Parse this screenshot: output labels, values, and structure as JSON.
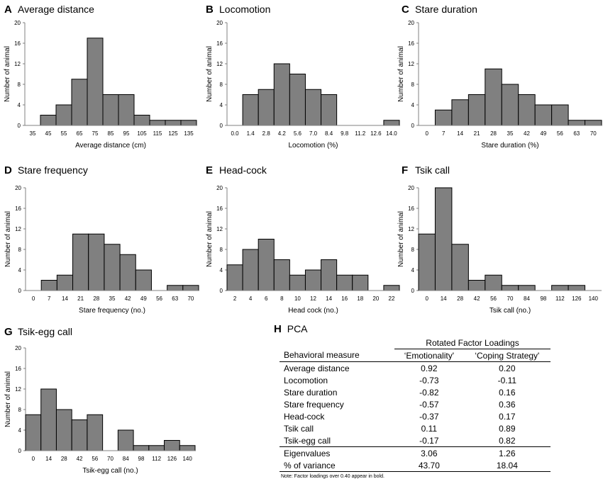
{
  "chart_data": [
    {
      "id": "A",
      "type": "bar",
      "title": "Average distance",
      "xlabel": "Average distance (cm)",
      "ylabel": "Number of animal",
      "ylim": [
        0,
        20
      ],
      "yticks": [
        "0",
        "4",
        "8",
        "12",
        "16",
        "20"
      ],
      "categories": [
        "35",
        "45",
        "55",
        "65",
        "75",
        "85",
        "95",
        "105",
        "115",
        "125",
        "135"
      ],
      "values": [
        0,
        2,
        4,
        9,
        17,
        6,
        6,
        2,
        1,
        1,
        1
      ]
    },
    {
      "id": "B",
      "type": "bar",
      "title": "Locomotion",
      "xlabel": "Locomotion (%)",
      "ylabel": "Number of animal",
      "ylim": [
        0,
        20
      ],
      "yticks": [
        "0",
        "4",
        "8",
        "12",
        "16",
        "20"
      ],
      "categories": [
        "0.0",
        "1.4",
        "2.8",
        "4.2",
        "5.6",
        "7.0",
        "8.4",
        "9.8",
        "11.2",
        "12.6",
        "14.0"
      ],
      "values": [
        0,
        6,
        7,
        12,
        10,
        7,
        6,
        0,
        0,
        0,
        1
      ]
    },
    {
      "id": "C",
      "type": "bar",
      "title": "Stare duration",
      "xlabel": "Stare duration (%)",
      "ylabel": "Number of animal",
      "ylim": [
        0,
        20
      ],
      "yticks": [
        "0",
        "4",
        "8",
        "12",
        "16",
        "20"
      ],
      "categories": [
        "0",
        "7",
        "14",
        "21",
        "28",
        "35",
        "42",
        "49",
        "56",
        "63",
        "70"
      ],
      "values": [
        0,
        3,
        5,
        6,
        11,
        8,
        6,
        4,
        4,
        1,
        1
      ]
    },
    {
      "id": "D",
      "type": "bar",
      "title": "Stare frequency",
      "xlabel": "Stare frequency (no.)",
      "ylabel": "Number of animal",
      "ylim": [
        0,
        20
      ],
      "yticks": [
        "0",
        "4",
        "8",
        "12",
        "16",
        "20"
      ],
      "categories": [
        "0",
        "7",
        "14",
        "21",
        "28",
        "35",
        "42",
        "49",
        "56",
        "63",
        "70"
      ],
      "values": [
        0,
        2,
        3,
        11,
        11,
        9,
        7,
        4,
        0,
        1,
        1
      ]
    },
    {
      "id": "E",
      "type": "bar",
      "title": "Head-cock",
      "xlabel": "Head cock (no.)",
      "ylabel": "Number of animal",
      "ylim": [
        0,
        20
      ],
      "yticks": [
        "0",
        "4",
        "8",
        "12",
        "16",
        "20"
      ],
      "categories": [
        "2",
        "4",
        "6",
        "8",
        "10",
        "12",
        "14",
        "16",
        "18",
        "20",
        "22"
      ],
      "values": [
        5,
        8,
        10,
        6,
        3,
        4,
        6,
        3,
        3,
        0,
        1
      ]
    },
    {
      "id": "F",
      "type": "bar",
      "title": "Tsik call",
      "xlabel": "Tsik call (no.)",
      "ylabel": "Number of animal",
      "ylim": [
        0,
        20
      ],
      "yticks": [
        "0",
        "4",
        "8",
        "12",
        "16",
        "20"
      ],
      "categories": [
        "0",
        "14",
        "28",
        "42",
        "56",
        "70",
        "84",
        "98",
        "112",
        "126",
        "140"
      ],
      "values": [
        11,
        20,
        9,
        2,
        3,
        1,
        1,
        0,
        1,
        1,
        0
      ]
    },
    {
      "id": "G",
      "type": "bar",
      "title": "Tsik-egg call",
      "xlabel": "Tsik-egg call (no.)",
      "ylabel": "Number of animal",
      "ylim": [
        0,
        20
      ],
      "yticks": [
        "0",
        "4",
        "8",
        "12",
        "16",
        "20"
      ],
      "categories": [
        "0",
        "14",
        "28",
        "42",
        "56",
        "70",
        "84",
        "98",
        "112",
        "126",
        "140"
      ],
      "values": [
        7,
        12,
        8,
        6,
        7,
        0,
        4,
        1,
        1,
        2,
        1
      ]
    }
  ],
  "pca": {
    "letter": "H",
    "title": "PCA",
    "group_header": "Rotated Factor Loadings",
    "col_measure": "Behavioral measure",
    "col_f1": "‘Emotionality'",
    "col_f2": "‘Coping Strategy'",
    "rows": [
      {
        "measure": "Average distance",
        "f1": "0.92",
        "f2": "0.20"
      },
      {
        "measure": "Locomotion",
        "f1": "-0.73",
        "f2": "-0.11"
      },
      {
        "measure": "Stare duration",
        "f1": "-0.82",
        "f2": "0.16"
      },
      {
        "measure": "Stare frequency",
        "f1": "-0.57",
        "f2": "0.36"
      },
      {
        "measure": "Head-cock",
        "f1": "-0.37",
        "f2": "0.17"
      },
      {
        "measure": "Tsik call",
        "f1": "0.11",
        "f2": "0.89"
      },
      {
        "measure": "Tsik-egg call",
        "f1": "-0.17",
        "f2": "0.82"
      }
    ],
    "eigen": {
      "label": "Eigenvalues",
      "f1": "3.06",
      "f2": "1.26"
    },
    "variance": {
      "label": "% of variance",
      "f1": "43.70",
      "f2": "18.04"
    },
    "note": "Note: Factor loadings over 0.40 appear in bold."
  },
  "colors": {
    "bar_fill": "#808080",
    "bar_stroke": "#000000",
    "axis": "#808080",
    "text": "#000000"
  }
}
